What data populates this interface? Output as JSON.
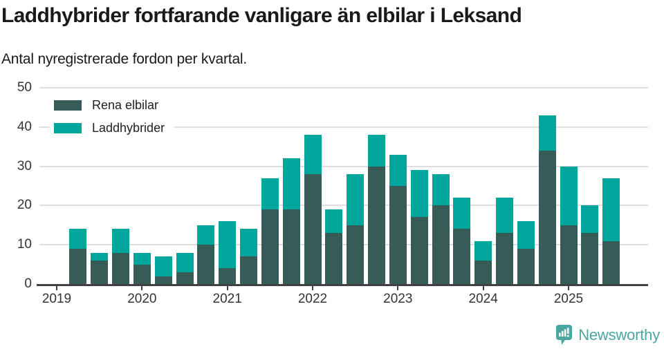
{
  "header": {
    "title": "Laddhybrider fortfarande vanligare än elbilar i Leksand",
    "subtitle": "Antal nyregistrerade fordon per kvartal."
  },
  "chart_data": {
    "type": "bar",
    "stacked": true,
    "title": "Laddhybrider fortfarande vanligare än elbilar i Leksand",
    "subtitle": "Antal nyregistrerade fordon per kvartal.",
    "categories": [
      "2019 Q2",
      "2019 Q3",
      "2019 Q4",
      "2020 Q1",
      "2020 Q2",
      "2020 Q3",
      "2020 Q4",
      "2021 Q1",
      "2021 Q2",
      "2021 Q3",
      "2021 Q4",
      "2022 Q1",
      "2022 Q2",
      "2022 Q3",
      "2022 Q4",
      "2023 Q1",
      "2023 Q2",
      "2023 Q3",
      "2023 Q4",
      "2024 Q1",
      "2024 Q2",
      "2024 Q3",
      "2024 Q4",
      "2025 Q1",
      "2025 Q2",
      "2025 Q3"
    ],
    "series": [
      {
        "name": "Rena elbilar",
        "color": "#375b56",
        "values": [
          9,
          6,
          8,
          5,
          2,
          3,
          10,
          4,
          7,
          19,
          19,
          28,
          13,
          15,
          30,
          25,
          17,
          20,
          14,
          6,
          13,
          9,
          34,
          15,
          13,
          11
        ]
      },
      {
        "name": "Laddhybrider",
        "color": "#00a69c",
        "values": [
          5,
          2,
          6,
          3,
          5,
          5,
          5,
          12,
          7,
          8,
          13,
          10,
          6,
          13,
          8,
          8,
          12,
          8,
          8,
          5,
          9,
          7,
          9,
          15,
          7,
          16
        ]
      }
    ],
    "stacked_totals": [
      14,
      8,
      14,
      8,
      7,
      8,
      15,
      16,
      14,
      27,
      32,
      38,
      19,
      28,
      38,
      33,
      29,
      28,
      22,
      11,
      22,
      16,
      43,
      30,
      20,
      27
    ],
    "x_tick_labels": [
      "2019",
      "2020",
      "2021",
      "2022",
      "2023",
      "2024",
      "2025"
    ],
    "y_ticks": [
      0,
      10,
      20,
      30,
      40,
      50
    ],
    "ylim": [
      0,
      50
    ],
    "grid": true,
    "legend_position": "top-left",
    "first_bar_quarter_offset": 1
  },
  "colors": {
    "grid": "#dedede",
    "axis": "#414141",
    "tick_label": "#333333",
    "text": "#1a1a1a"
  },
  "footer": {
    "brand": "Newsworthy",
    "brand_color": "#4ba6a1"
  }
}
